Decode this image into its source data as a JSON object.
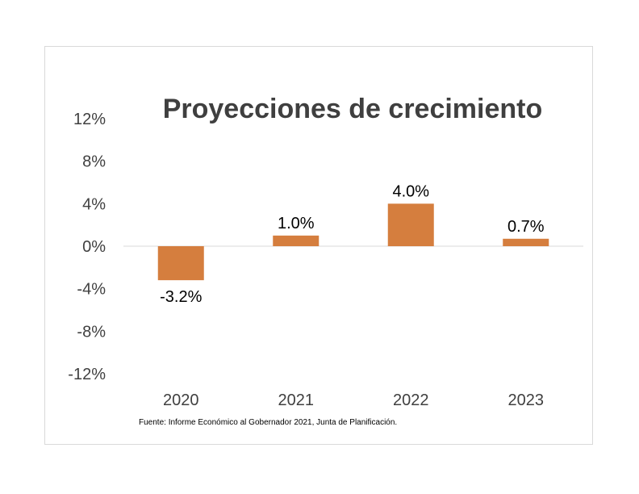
{
  "chart_data": {
    "type": "bar",
    "title": "Proyecciones de crecimiento",
    "categories": [
      "2020",
      "2021",
      "2022",
      "2023"
    ],
    "values": [
      -3.2,
      1.0,
      4.0,
      0.7
    ],
    "data_labels": [
      "-3.2%",
      "1.0%",
      "4.0%",
      "0.7%"
    ],
    "yticks": [
      12,
      8,
      4,
      0,
      -4,
      -8,
      -12
    ],
    "ytick_labels": [
      "12%",
      "8%",
      "4%",
      "0%",
      "-4%",
      "-8%",
      "-12%"
    ],
    "ylim": [
      -12,
      12
    ],
    "grid": false,
    "legend": "none",
    "bar_color": "#D57E3E"
  },
  "source_note": "Fuente: Informe Económico al Gobernador 2021, Junta de Planificación."
}
